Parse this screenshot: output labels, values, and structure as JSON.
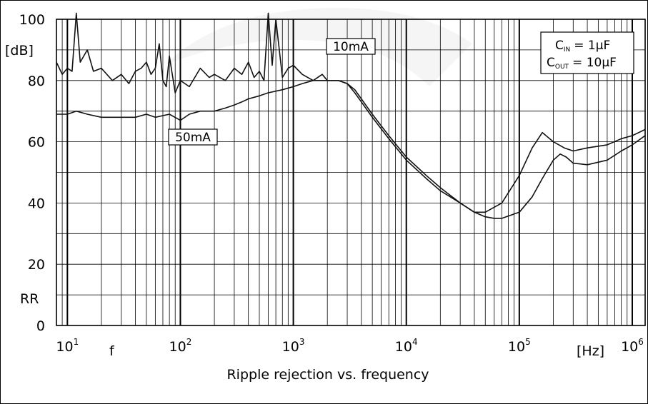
{
  "chart_data": {
    "type": "line",
    "title": "Ripple rejection vs. frequency",
    "ylabel": "RR",
    "yunit": "[dB]",
    "xlabel": "f",
    "xunit": "[Hz]",
    "xscale": "log",
    "xlim": [
      8,
      1300000
    ],
    "ylim": [
      0,
      100
    ],
    "yticks": [
      0,
      20,
      40,
      60,
      80,
      100
    ],
    "xticks": [
      {
        "base": "10",
        "exp": "1"
      },
      {
        "base": "10",
        "exp": "2"
      },
      {
        "base": "10",
        "exp": "3"
      },
      {
        "base": "10",
        "exp": "4"
      },
      {
        "base": "10",
        "exp": "5"
      },
      {
        "base": "10",
        "exp": "6"
      }
    ],
    "grid": true,
    "conditions": {
      "cin_sym": "C",
      "cin_sub": "IN",
      "cin_val": "= 1µF",
      "cout_sym": "C",
      "cout_sub": "OUT",
      "cout_val": "= 10µF"
    },
    "series": [
      {
        "name": "10mA",
        "x": [
          8,
          9,
          10,
          11,
          12,
          13,
          15,
          17,
          20,
          25,
          30,
          35,
          40,
          45,
          50,
          55,
          60,
          65,
          70,
          75,
          80,
          90,
          100,
          120,
          150,
          180,
          200,
          250,
          300,
          350,
          400,
          450,
          500,
          550,
          600,
          650,
          700,
          800,
          900,
          1000,
          1200,
          1500,
          1800,
          2000,
          2500,
          3000,
          3500,
          4000,
          5000,
          7000,
          10000,
          15000,
          20000,
          30000,
          40000,
          50000,
          70000,
          100000,
          130000,
          160000,
          200000,
          250000,
          300000,
          400000,
          600000,
          800000,
          1000000,
          1300000
        ],
        "y": [
          86,
          82,
          84,
          83,
          102,
          86,
          90,
          83,
          84,
          80,
          82,
          79,
          83,
          84,
          86,
          82,
          84,
          92,
          80,
          78,
          88,
          76,
          80,
          78,
          84,
          81,
          82,
          80,
          84,
          82,
          86,
          81,
          83,
          80,
          102,
          85,
          100,
          81,
          84,
          85,
          82,
          80,
          82,
          80,
          80,
          79,
          76,
          73,
          68,
          61,
          54,
          48,
          44,
          40,
          37,
          37,
          40,
          49,
          58,
          63,
          60,
          58,
          57,
          58,
          59,
          61,
          62,
          64
        ]
      },
      {
        "name": "50mA",
        "x": [
          8,
          10,
          12,
          15,
          20,
          25,
          30,
          40,
          50,
          60,
          80,
          100,
          120,
          150,
          200,
          250,
          300,
          350,
          400,
          500,
          600,
          800,
          1000,
          1200,
          1500,
          2000,
          2500,
          3000,
          3500,
          4000,
          5000,
          7000,
          10000,
          15000,
          20000,
          30000,
          40000,
          50000,
          60000,
          70000,
          100000,
          130000,
          160000,
          200000,
          230000,
          260000,
          300000,
          400000,
          600000,
          800000,
          1000000,
          1300000
        ],
        "y": [
          69,
          69,
          70,
          69,
          68,
          68,
          68,
          68,
          69,
          68,
          69,
          67,
          69,
          70,
          70,
          71,
          72,
          73,
          74,
          75,
          76,
          77,
          78,
          79,
          80,
          80,
          80,
          79,
          77,
          74,
          69,
          62,
          55,
          49,
          45,
          40,
          37,
          35.5,
          35,
          35,
          37,
          42,
          48,
          54,
          56,
          55,
          53,
          52.5,
          54,
          57,
          59,
          62
        ]
      }
    ]
  }
}
